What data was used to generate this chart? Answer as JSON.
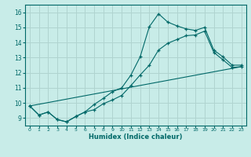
{
  "xlabel": "Humidex (Indice chaleur)",
  "xlim": [
    -0.5,
    23.5
  ],
  "ylim": [
    8.5,
    16.5
  ],
  "xticks": [
    0,
    1,
    2,
    3,
    4,
    5,
    6,
    7,
    8,
    9,
    10,
    11,
    12,
    13,
    14,
    15,
    16,
    17,
    18,
    19,
    20,
    21,
    22,
    23
  ],
  "yticks": [
    9,
    10,
    11,
    12,
    13,
    14,
    15,
    16
  ],
  "bg_color": "#c8ece8",
  "line_color": "#006868",
  "grid_color": "#b0d4d0",
  "lines": [
    {
      "x": [
        0,
        1,
        2,
        3,
        4,
        5,
        6,
        7,
        8,
        9,
        10,
        11,
        12,
        13,
        14,
        15,
        16,
        17,
        18,
        19,
        20,
        21,
        22,
        23
      ],
      "y": [
        9.8,
        9.2,
        9.4,
        8.9,
        8.75,
        9.1,
        9.4,
        9.9,
        10.3,
        10.75,
        11.0,
        11.85,
        13.05,
        15.05,
        15.9,
        15.35,
        15.1,
        14.9,
        14.8,
        15.0,
        13.5,
        13.05,
        12.5,
        12.5
      ],
      "has_markers": true
    },
    {
      "x": [
        0,
        1,
        2,
        3,
        4,
        5,
        6,
        7,
        8,
        9,
        10,
        11,
        12,
        13,
        14,
        15,
        16,
        17,
        18,
        19,
        20,
        21,
        22,
        23
      ],
      "y": [
        9.8,
        9.2,
        9.4,
        8.9,
        8.75,
        9.1,
        9.4,
        9.55,
        9.95,
        10.2,
        10.5,
        11.15,
        11.85,
        12.5,
        13.5,
        13.95,
        14.2,
        14.45,
        14.5,
        14.75,
        13.35,
        12.85,
        12.35,
        12.4
      ],
      "has_markers": true
    },
    {
      "x": [
        0,
        23
      ],
      "y": [
        9.8,
        12.4
      ],
      "has_markers": false
    }
  ]
}
